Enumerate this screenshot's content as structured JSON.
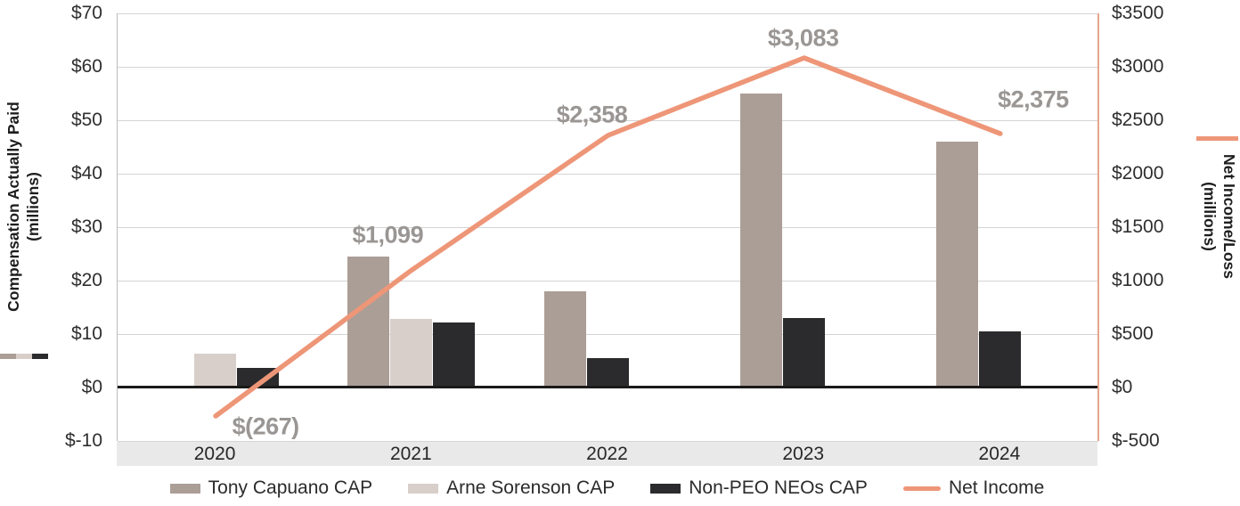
{
  "chart_data": {
    "type": "bar",
    "subtype": "grouped-bar-with-line-combo",
    "categories": [
      "2020",
      "2021",
      "2022",
      "2023",
      "2024"
    ],
    "left_axis": {
      "title_lines": [
        "Compensation Actually Paid",
        "(millions)"
      ],
      "ticks": [
        "$70",
        "$60",
        "$50",
        "$40",
        "$30",
        "$20",
        "$10",
        "$0",
        "$-10"
      ],
      "min": -10,
      "max": 70,
      "step": 10,
      "grid": true
    },
    "right_axis": {
      "title_lines": [
        "Net Income/Loss",
        "(millions)"
      ],
      "ticks": [
        "$3500",
        "$3000",
        "$2500",
        "$2000",
        "$1500",
        "$1000",
        "$500",
        "$0",
        "$-500"
      ],
      "min": -500,
      "max": 3500,
      "step": 500
    },
    "bar_series": [
      {
        "name": "Tony Capuano CAP",
        "color": "#ab9e97",
        "values": [
          null,
          24.5,
          18.0,
          55.0,
          46.0
        ]
      },
      {
        "name": "Arne Sorenson CAP",
        "color": "#d8cfca",
        "values": [
          6.4,
          12.8,
          null,
          null,
          null
        ]
      },
      {
        "name": "Non-PEO NEOs CAP",
        "color": "#2b2b2d",
        "values": [
          3.7,
          12.2,
          5.5,
          13.0,
          10.5
        ]
      }
    ],
    "line_series": {
      "name": "Net Income",
      "color": "#ee9678",
      "values": [
        -267,
        1099,
        2358,
        3083,
        2375
      ],
      "labels": [
        "$(267)",
        "$1,099",
        "$2,358",
        "$3,083",
        "$2,375"
      ],
      "label_color": "#9a9694"
    },
    "legend_position": "bottom-center",
    "bar_values_unit": "USD millions (estimated from bar heights; bars are unlabeled)",
    "line_values_unit": "USD millions (from data labels)"
  }
}
